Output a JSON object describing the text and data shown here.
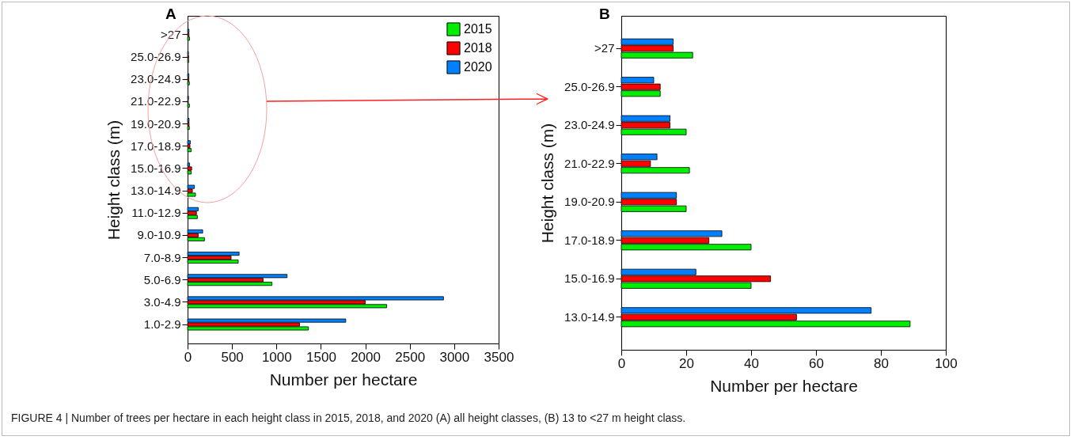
{
  "chart_data": [
    {
      "type": "bar",
      "title": "A",
      "orientation": "horizontal",
      "xlabel": "Number per hectare",
      "ylabel": "Height class (m)",
      "categories": [
        ">27",
        "25.0-26.9",
        "23.0-24.9",
        "21.0-22.9",
        "19.0-20.9",
        "17.0-18.9",
        "15.0-16.9",
        "13.0-14.9",
        "11.0-12.9",
        "9.0-10.9",
        "7.0-8.9",
        "5.0-6.9",
        "3.0-4.9",
        "1.0-2.9"
      ],
      "series": [
        {
          "name": "2015",
          "color": "#00ee00",
          "values": [
            22,
            12,
            20,
            21,
            20,
            40,
            40,
            89,
            110,
            190,
            570,
            950,
            2240,
            1360
          ]
        },
        {
          "name": "2018",
          "color": "#ff0000",
          "values": [
            16,
            12,
            15,
            9,
            17,
            27,
            46,
            54,
            100,
            120,
            490,
            850,
            2000,
            1260
          ]
        },
        {
          "name": "2020",
          "color": "#0080ff",
          "values": [
            16,
            10,
            15,
            11,
            17,
            31,
            23,
            77,
            120,
            170,
            580,
            1120,
            2880,
            1780
          ]
        }
      ],
      "xlim": [
        0,
        3500
      ],
      "xticks": [
        0,
        500,
        1000,
        1500,
        2000,
        2500,
        3000,
        3500
      ],
      "legend": "top right",
      "annotations": [
        "FIGURE 4 | Number of trees per hectare in each height class in 2015, 2018, and 2020 (A) all height classes, (B) 13 to <27 m height class."
      ]
    },
    {
      "type": "bar",
      "title": "B",
      "orientation": "horizontal",
      "xlabel": "Number per hectare",
      "ylabel": "Height class (m)",
      "categories": [
        ">27",
        "25.0-26.9",
        "23.0-24.9",
        "21.0-22.9",
        "19.0-20.9",
        "17.0-18.9",
        "15.0-16.9",
        "13.0-14.9"
      ],
      "series": [
        {
          "color": "#00ee00",
          "values": [
            22,
            12,
            20,
            21,
            20,
            40,
            40,
            89
          ]
        },
        {
          "color": "#ff0000",
          "values": [
            16,
            12,
            15,
            9,
            17,
            27,
            46,
            54
          ]
        },
        {
          "color": "#0080ff",
          "values": [
            16,
            10,
            15,
            11,
            17,
            31,
            23,
            77
          ]
        }
      ],
      "xlim": [
        0,
        100
      ],
      "xticks": [
        0,
        20,
        40,
        60,
        80,
        100
      ]
    }
  ]
}
